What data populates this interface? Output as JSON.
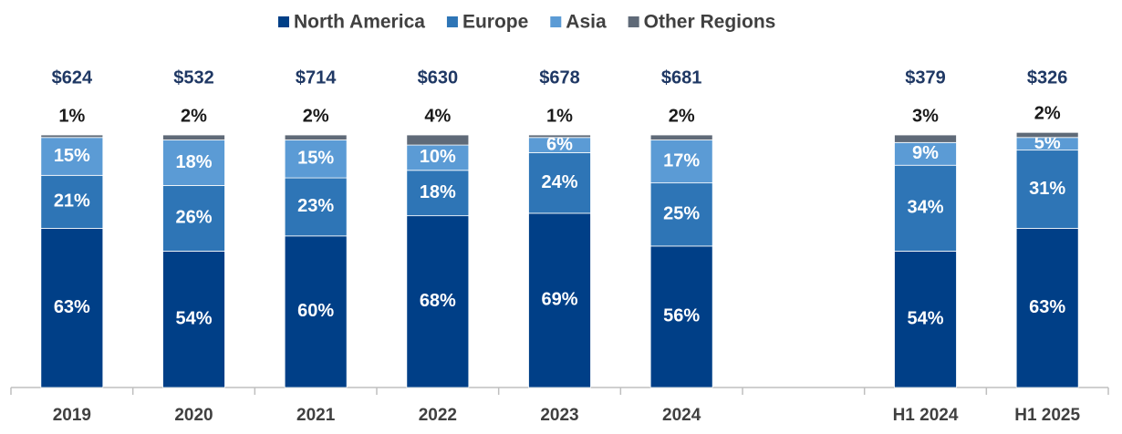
{
  "chart_data": {
    "type": "stacked_bar",
    "categories": [
      "2019",
      "2020",
      "2021",
      "2022",
      "2023",
      "2024",
      null,
      "H1 2024",
      "H1 2025"
    ],
    "series": [
      {
        "name": "North America",
        "color": "#003f87",
        "values": [
          63,
          54,
          60,
          68,
          69,
          56,
          null,
          54,
          63
        ],
        "value_labels": [
          "63%",
          "54%",
          "60%",
          "68%",
          "69%",
          "56%",
          null,
          "54%",
          "63%"
        ]
      },
      {
        "name": "Europe",
        "color": "#2e75b6",
        "values": [
          21,
          26,
          23,
          18,
          24,
          25,
          null,
          34,
          31
        ],
        "value_labels": [
          "21%",
          "26%",
          "23%",
          "18%",
          "24%",
          "25%",
          null,
          "34%",
          "31%"
        ]
      },
      {
        "name": "Asia",
        "color": "#5b9bd5",
        "values": [
          15,
          18,
          15,
          10,
          6,
          17,
          null,
          9,
          5
        ],
        "value_labels": [
          "15%",
          "18%",
          "15%",
          "10%",
          "6%",
          "17%",
          null,
          "9%",
          "5%"
        ]
      },
      {
        "name": "Other Regions",
        "color": "#5f6a78",
        "values": [
          1,
          2,
          2,
          4,
          1,
          2,
          null,
          3,
          2
        ],
        "value_labels": [
          "1%",
          "2%",
          "2%",
          "4%",
          "1%",
          "2%",
          null,
          "3%",
          "2%"
        ]
      }
    ],
    "totals": {
      "values": [
        624,
        532,
        714,
        630,
        678,
        681,
        null,
        379,
        326
      ],
      "value_labels": [
        "$624",
        "$532",
        "$714",
        "$630",
        "$678",
        "$681",
        null,
        "$379",
        "$326"
      ]
    },
    "ylim": [
      0,
      100
    ]
  }
}
